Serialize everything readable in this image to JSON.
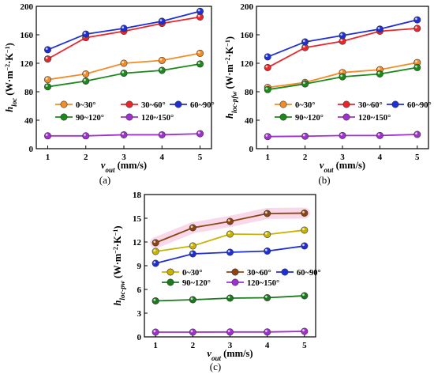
{
  "chart_data": [
    {
      "type": "line",
      "caption": "(a)",
      "ylabel": "h_loc (W·m⁻²·K⁻¹)",
      "xlabel": "v_out (mm/s)",
      "x": [
        1,
        2,
        3,
        4,
        5
      ],
      "xlim": [
        0.7,
        5.3
      ],
      "ylim": [
        0,
        200
      ],
      "yticks": [
        0,
        40,
        80,
        120,
        160,
        200
      ],
      "series": [
        {
          "name": "0~30°",
          "color": "#f28c28",
          "values": [
            97,
            105,
            120,
            124,
            134
          ]
        },
        {
          "name": "30~60°",
          "color": "#e8262b",
          "values": [
            126,
            156,
            165,
            176,
            185
          ]
        },
        {
          "name": "60~90°",
          "color": "#1f2fd6",
          "values": [
            139,
            161,
            169,
            179,
            193
          ]
        },
        {
          "name": "90~120°",
          "color": "#1b8a1b",
          "values": [
            87,
            95,
            106,
            110,
            119
          ]
        },
        {
          "name": "120~150°",
          "color": "#a030d0",
          "values": [
            18,
            18,
            19.5,
            19.5,
            21
          ]
        }
      ]
    },
    {
      "type": "line",
      "caption": "(b)",
      "ylabel": "h_loc-pfw (W·m⁻²·K⁻¹)",
      "xlabel": "v_out (mm/s)",
      "x": [
        1,
        2,
        3,
        4,
        5
      ],
      "xlim": [
        0.7,
        5.3
      ],
      "ylim": [
        0,
        200
      ],
      "yticks": [
        0,
        40,
        80,
        120,
        160,
        200
      ],
      "series": [
        {
          "name": "0~30°",
          "color": "#f28c28",
          "values": [
            86,
            93,
            107,
            111,
            121
          ]
        },
        {
          "name": "30~60°",
          "color": "#e8262b",
          "values": [
            114,
            142,
            151,
            165,
            169
          ]
        },
        {
          "name": "60~90°",
          "color": "#1f2fd6",
          "values": [
            129,
            150,
            159,
            168,
            181
          ]
        },
        {
          "name": "90~120°",
          "color": "#1b8a1b",
          "values": [
            83,
            91,
            101,
            105,
            114
          ]
        },
        {
          "name": "120~150°",
          "color": "#a030d0",
          "values": [
            17,
            17.5,
            18.5,
            18.5,
            20
          ]
        }
      ]
    },
    {
      "type": "line",
      "caption": "(c)",
      "ylabel": "h_loc-pw (W·m⁻²·K⁻¹)",
      "xlabel": "v_out (mm/s)",
      "x": [
        1,
        2,
        3,
        4,
        5
      ],
      "xlim": [
        0.7,
        5.3
      ],
      "ylim": [
        0,
        18
      ],
      "yticks": [
        0,
        3,
        6,
        9,
        12,
        15,
        18
      ],
      "series": [
        {
          "name": "0~30°",
          "color": "#c8b400",
          "values": [
            10.8,
            11.5,
            13.0,
            12.95,
            13.5
          ]
        },
        {
          "name": "30~60°",
          "color": "#8b4513",
          "values": [
            11.9,
            13.8,
            14.6,
            15.6,
            15.65
          ]
        },
        {
          "name": "60~90°",
          "color": "#1f2fd6",
          "values": [
            9.3,
            10.5,
            10.7,
            10.85,
            11.5
          ]
        },
        {
          "name": "90~120°",
          "color": "#1b7a1b",
          "values": [
            4.55,
            4.7,
            4.9,
            4.95,
            5.2
          ]
        },
        {
          "name": "120~150°",
          "color": "#a030d0",
          "values": [
            0.6,
            0.6,
            0.62,
            0.62,
            0.7
          ]
        }
      ]
    }
  ]
}
